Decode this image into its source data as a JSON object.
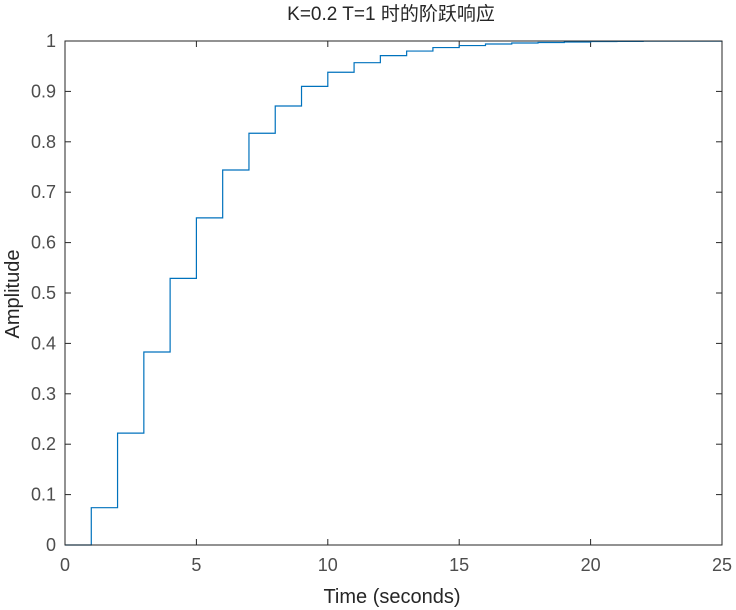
{
  "chart_data": {
    "type": "line",
    "title": "K=0.2 T=1 时的阶跃响应",
    "xlabel": "Time (seconds)",
    "ylabel": "Amplitude",
    "xlim": [
      0,
      25
    ],
    "ylim": [
      0,
      1
    ],
    "xticks": [
      0,
      5,
      10,
      15,
      20,
      25
    ],
    "xtick_labels": [
      "0",
      "5",
      "10",
      "15",
      "20",
      "25"
    ],
    "yticks": [
      0,
      0.1,
      0.2,
      0.3,
      0.4,
      0.5,
      0.6,
      0.7,
      0.8,
      0.9,
      1
    ],
    "ytick_labels": [
      "0",
      "0.1",
      "0.2",
      "0.3",
      "0.4",
      "0.5",
      "0.6",
      "0.7",
      "0.8",
      "0.9",
      "1"
    ],
    "grid": false,
    "legend": "none",
    "steady_state": 1,
    "series": [
      {
        "style": "stairs",
        "color": "#0072BD",
        "x": [
          0,
          1,
          2,
          3,
          4,
          5,
          6,
          7,
          8,
          9,
          10,
          11,
          12,
          13,
          14,
          15,
          16,
          17,
          18,
          19,
          20,
          21,
          22,
          23,
          24,
          25
        ],
        "y": [
          0,
          0.074,
          0.222,
          0.383,
          0.529,
          0.649,
          0.744,
          0.817,
          0.871,
          0.91,
          0.938,
          0.957,
          0.971,
          0.98,
          0.987,
          0.991,
          0.994,
          0.996,
          0.997,
          0.998,
          0.999,
          0.9993,
          0.9996,
          0.9997,
          0.9998,
          0.9999
        ]
      }
    ]
  },
  "colors": {
    "axes": "#262626",
    "tick_text": "#4d4d4d",
    "line": "#0072BD",
    "steady_state_line": "#4d4d4d"
  }
}
